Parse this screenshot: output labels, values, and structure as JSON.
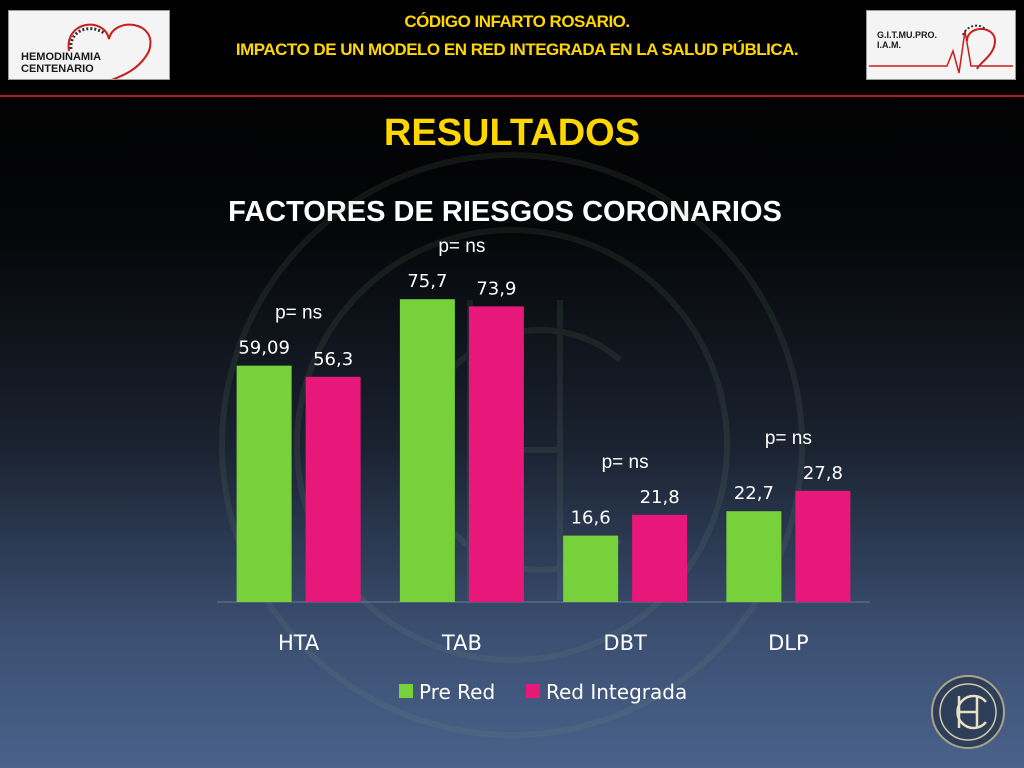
{
  "header": {
    "line1": "CÓDIGO INFARTO ROSARIO.",
    "line2": "IMPACTO DE UN MODELO EN RED INTEGRADA EN LA SALUD PÚBLICA.",
    "logo_left": "HEMODINAMIA CENTENARIO",
    "logo_right": "G.I.T.MU.PRO. I.A.M."
  },
  "section_title": "RESULTADOS",
  "colors": {
    "accent": "#ffd700",
    "pre_red": "#76d13b",
    "red_integrada": "#e8177a"
  },
  "chart_data": {
    "type": "bar",
    "title": "FACTORES DE RIESGOS CORONARIOS",
    "categories": [
      "HTA",
      "TAB",
      "DBT",
      "DLP"
    ],
    "series": [
      {
        "name": "Pre Red",
        "values": [
          59.09,
          75.7,
          16.6,
          22.7
        ],
        "labels": [
          "59,09",
          "75,7",
          "16,6",
          "22,7"
        ]
      },
      {
        "name": "Red Integrada",
        "values": [
          56.3,
          73.9,
          21.8,
          27.8
        ],
        "labels": [
          "56,3",
          "73,9",
          "21,8",
          "27,8"
        ]
      }
    ],
    "annotations": [
      "p= ns",
      "p= ns",
      "p= ns",
      "p= ns"
    ],
    "ylim": [
      0,
      100
    ],
    "grid": false,
    "legend": "bottom"
  }
}
